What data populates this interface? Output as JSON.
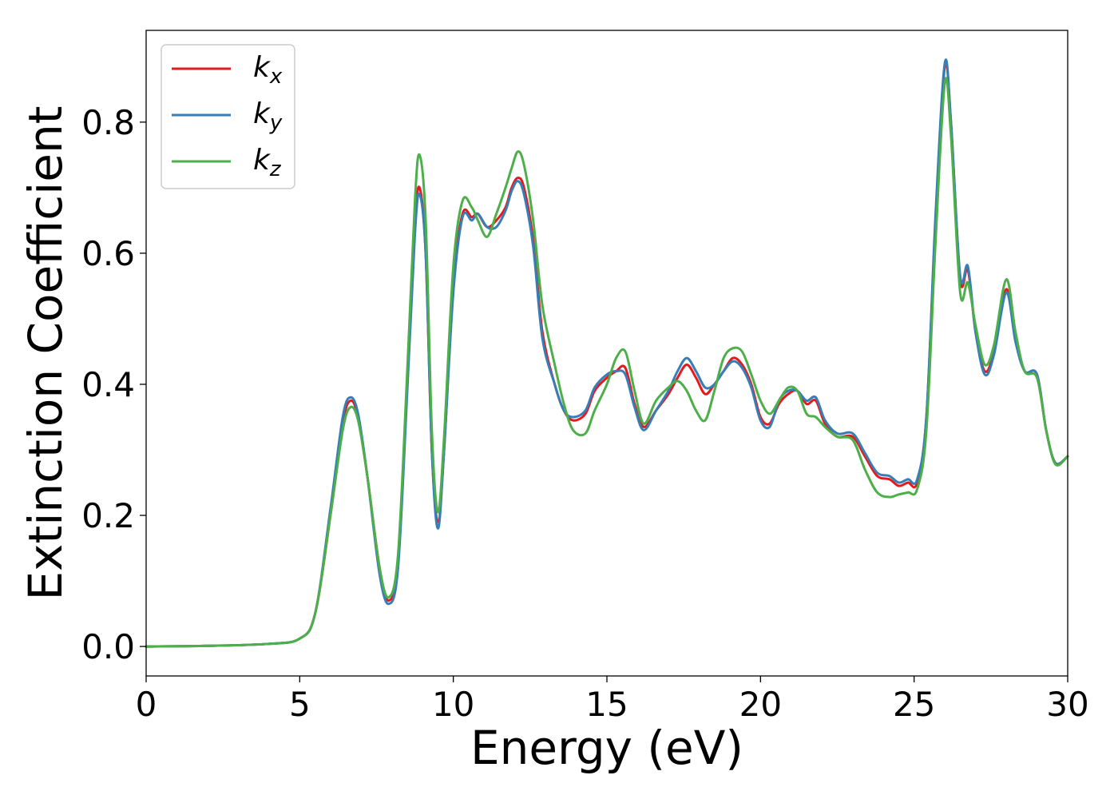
{
  "chart_data": {
    "type": "line",
    "title": "",
    "xlabel": "Energy (eV)",
    "ylabel": "Extinction Coefficient",
    "xlim": [
      0,
      30
    ],
    "ylim": [
      -0.045,
      0.94
    ],
    "grid": false,
    "legend_position": "top-left",
    "x_ticks": [
      0,
      5,
      10,
      15,
      20,
      25,
      30
    ],
    "x_tick_labels": [
      "0",
      "5",
      "10",
      "15",
      "20",
      "25",
      "30"
    ],
    "y_ticks": [
      0.0,
      0.2,
      0.4,
      0.6,
      0.8
    ],
    "y_tick_labels": [
      "0.0",
      "0.2",
      "0.4",
      "0.6",
      "0.8"
    ],
    "series": [
      {
        "name": "k_x",
        "label_base": "k",
        "label_sub": "x",
        "color": "#e41a1c",
        "points": [
          [
            0,
            0.0
          ],
          [
            2,
            0.001
          ],
          [
            4,
            0.004
          ],
          [
            5,
            0.012
          ],
          [
            5.5,
            0.05
          ],
          [
            6,
            0.2
          ],
          [
            6.4,
            0.34
          ],
          [
            6.65,
            0.375
          ],
          [
            6.9,
            0.35
          ],
          [
            7.2,
            0.26
          ],
          [
            7.6,
            0.12
          ],
          [
            7.9,
            0.07
          ],
          [
            8.2,
            0.13
          ],
          [
            8.5,
            0.4
          ],
          [
            8.75,
            0.64
          ],
          [
            8.9,
            0.7
          ],
          [
            9.1,
            0.6
          ],
          [
            9.3,
            0.3
          ],
          [
            9.5,
            0.19
          ],
          [
            9.7,
            0.3
          ],
          [
            10,
            0.55
          ],
          [
            10.3,
            0.66
          ],
          [
            10.6,
            0.655
          ],
          [
            10.8,
            0.66
          ],
          [
            11.1,
            0.64
          ],
          [
            11.4,
            0.65
          ],
          [
            11.7,
            0.67
          ],
          [
            11.9,
            0.7
          ],
          [
            12.1,
            0.715
          ],
          [
            12.3,
            0.7
          ],
          [
            12.6,
            0.62
          ],
          [
            12.9,
            0.48
          ],
          [
            13.3,
            0.4
          ],
          [
            13.6,
            0.36
          ],
          [
            13.9,
            0.345
          ],
          [
            14.3,
            0.355
          ],
          [
            14.6,
            0.39
          ],
          [
            15,
            0.41
          ],
          [
            15.3,
            0.42
          ],
          [
            15.6,
            0.425
          ],
          [
            15.9,
            0.37
          ],
          [
            16.2,
            0.335
          ],
          [
            16.6,
            0.36
          ],
          [
            17,
            0.385
          ],
          [
            17.3,
            0.41
          ],
          [
            17.6,
            0.43
          ],
          [
            17.9,
            0.41
          ],
          [
            18.2,
            0.385
          ],
          [
            18.5,
            0.4
          ],
          [
            18.8,
            0.42
          ],
          [
            19.1,
            0.44
          ],
          [
            19.4,
            0.43
          ],
          [
            19.7,
            0.4
          ],
          [
            20,
            0.35
          ],
          [
            20.3,
            0.34
          ],
          [
            20.6,
            0.37
          ],
          [
            20.9,
            0.385
          ],
          [
            21.2,
            0.39
          ],
          [
            21.5,
            0.37
          ],
          [
            21.8,
            0.375
          ],
          [
            22.1,
            0.34
          ],
          [
            22.5,
            0.32
          ],
          [
            23,
            0.32
          ],
          [
            23.4,
            0.29
          ],
          [
            23.8,
            0.26
          ],
          [
            24.2,
            0.255
          ],
          [
            24.5,
            0.245
          ],
          [
            24.8,
            0.25
          ],
          [
            25.1,
            0.25
          ],
          [
            25.4,
            0.35
          ],
          [
            25.7,
            0.65
          ],
          [
            26,
            0.885
          ],
          [
            26.2,
            0.8
          ],
          [
            26.5,
            0.56
          ],
          [
            26.75,
            0.575
          ],
          [
            27,
            0.48
          ],
          [
            27.3,
            0.42
          ],
          [
            27.6,
            0.45
          ],
          [
            28,
            0.545
          ],
          [
            28.3,
            0.47
          ],
          [
            28.6,
            0.42
          ],
          [
            29,
            0.415
          ],
          [
            29.3,
            0.33
          ],
          [
            29.6,
            0.28
          ],
          [
            30,
            0.29
          ]
        ]
      },
      {
        "name": "k_y",
        "label_base": "k",
        "label_sub": "y",
        "color": "#377eb8",
        "points": [
          [
            0,
            0.0
          ],
          [
            2,
            0.001
          ],
          [
            4,
            0.004
          ],
          [
            5,
            0.012
          ],
          [
            5.5,
            0.05
          ],
          [
            6,
            0.21
          ],
          [
            6.4,
            0.35
          ],
          [
            6.65,
            0.38
          ],
          [
            6.9,
            0.355
          ],
          [
            7.2,
            0.26
          ],
          [
            7.6,
            0.11
          ],
          [
            7.9,
            0.065
          ],
          [
            8.2,
            0.12
          ],
          [
            8.5,
            0.39
          ],
          [
            8.75,
            0.63
          ],
          [
            8.9,
            0.69
          ],
          [
            9.1,
            0.6
          ],
          [
            9.3,
            0.3
          ],
          [
            9.5,
            0.18
          ],
          [
            9.7,
            0.3
          ],
          [
            10,
            0.54
          ],
          [
            10.3,
            0.655
          ],
          [
            10.6,
            0.65
          ],
          [
            10.8,
            0.66
          ],
          [
            11.1,
            0.64
          ],
          [
            11.4,
            0.64
          ],
          [
            11.7,
            0.665
          ],
          [
            11.9,
            0.695
          ],
          [
            12.1,
            0.71
          ],
          [
            12.3,
            0.69
          ],
          [
            12.6,
            0.61
          ],
          [
            12.9,
            0.47
          ],
          [
            13.3,
            0.4
          ],
          [
            13.6,
            0.36
          ],
          [
            13.9,
            0.35
          ],
          [
            14.3,
            0.36
          ],
          [
            14.6,
            0.395
          ],
          [
            15,
            0.415
          ],
          [
            15.3,
            0.42
          ],
          [
            15.6,
            0.415
          ],
          [
            15.9,
            0.365
          ],
          [
            16.2,
            0.33
          ],
          [
            16.6,
            0.36
          ],
          [
            17,
            0.39
          ],
          [
            17.3,
            0.42
          ],
          [
            17.6,
            0.44
          ],
          [
            17.9,
            0.42
          ],
          [
            18.2,
            0.395
          ],
          [
            18.5,
            0.4
          ],
          [
            18.8,
            0.42
          ],
          [
            19.1,
            0.435
          ],
          [
            19.4,
            0.425
          ],
          [
            19.7,
            0.395
          ],
          [
            20,
            0.345
          ],
          [
            20.3,
            0.335
          ],
          [
            20.6,
            0.375
          ],
          [
            20.9,
            0.39
          ],
          [
            21.2,
            0.39
          ],
          [
            21.5,
            0.375
          ],
          [
            21.8,
            0.38
          ],
          [
            22.1,
            0.345
          ],
          [
            22.5,
            0.325
          ],
          [
            23,
            0.325
          ],
          [
            23.4,
            0.295
          ],
          [
            23.8,
            0.265
          ],
          [
            24.2,
            0.26
          ],
          [
            24.5,
            0.25
          ],
          [
            24.8,
            0.255
          ],
          [
            25.1,
            0.255
          ],
          [
            25.4,
            0.35
          ],
          [
            25.7,
            0.66
          ],
          [
            26,
            0.89
          ],
          [
            26.2,
            0.8
          ],
          [
            26.5,
            0.565
          ],
          [
            26.75,
            0.58
          ],
          [
            27,
            0.48
          ],
          [
            27.3,
            0.415
          ],
          [
            27.6,
            0.445
          ],
          [
            28,
            0.54
          ],
          [
            28.3,
            0.465
          ],
          [
            28.6,
            0.42
          ],
          [
            29,
            0.415
          ],
          [
            29.3,
            0.33
          ],
          [
            29.6,
            0.28
          ],
          [
            30,
            0.29
          ]
        ]
      },
      {
        "name": "k_z",
        "label_base": "k",
        "label_sub": "z",
        "color": "#4daf4a",
        "points": [
          [
            0,
            0.0
          ],
          [
            2,
            0.001
          ],
          [
            4,
            0.004
          ],
          [
            5,
            0.012
          ],
          [
            5.5,
            0.05
          ],
          [
            6,
            0.2
          ],
          [
            6.4,
            0.33
          ],
          [
            6.65,
            0.365
          ],
          [
            6.9,
            0.345
          ],
          [
            7.2,
            0.26
          ],
          [
            7.6,
            0.12
          ],
          [
            7.9,
            0.075
          ],
          [
            8.2,
            0.14
          ],
          [
            8.5,
            0.42
          ],
          [
            8.75,
            0.68
          ],
          [
            8.9,
            0.75
          ],
          [
            9.1,
            0.65
          ],
          [
            9.3,
            0.33
          ],
          [
            9.5,
            0.205
          ],
          [
            9.7,
            0.32
          ],
          [
            10,
            0.58
          ],
          [
            10.3,
            0.68
          ],
          [
            10.6,
            0.67
          ],
          [
            10.8,
            0.65
          ],
          [
            11.1,
            0.625
          ],
          [
            11.4,
            0.66
          ],
          [
            11.7,
            0.7
          ],
          [
            11.9,
            0.73
          ],
          [
            12.1,
            0.755
          ],
          [
            12.3,
            0.735
          ],
          [
            12.6,
            0.65
          ],
          [
            12.9,
            0.52
          ],
          [
            13.3,
            0.43
          ],
          [
            13.6,
            0.37
          ],
          [
            13.9,
            0.33
          ],
          [
            14.3,
            0.325
          ],
          [
            14.6,
            0.36
          ],
          [
            15,
            0.4
          ],
          [
            15.3,
            0.44
          ],
          [
            15.6,
            0.45
          ],
          [
            15.9,
            0.39
          ],
          [
            16.2,
            0.34
          ],
          [
            16.6,
            0.375
          ],
          [
            17,
            0.395
          ],
          [
            17.3,
            0.405
          ],
          [
            17.6,
            0.39
          ],
          [
            17.9,
            0.36
          ],
          [
            18.2,
            0.345
          ],
          [
            18.5,
            0.39
          ],
          [
            18.8,
            0.44
          ],
          [
            19.1,
            0.455
          ],
          [
            19.4,
            0.45
          ],
          [
            19.7,
            0.415
          ],
          [
            20,
            0.375
          ],
          [
            20.3,
            0.355
          ],
          [
            20.6,
            0.375
          ],
          [
            20.9,
            0.395
          ],
          [
            21.2,
            0.39
          ],
          [
            21.5,
            0.355
          ],
          [
            21.8,
            0.35
          ],
          [
            22.1,
            0.335
          ],
          [
            22.5,
            0.32
          ],
          [
            23,
            0.315
          ],
          [
            23.4,
            0.27
          ],
          [
            23.8,
            0.235
          ],
          [
            24.2,
            0.228
          ],
          [
            24.5,
            0.232
          ],
          [
            24.8,
            0.235
          ],
          [
            25.1,
            0.24
          ],
          [
            25.4,
            0.33
          ],
          [
            25.7,
            0.62
          ],
          [
            26,
            0.86
          ],
          [
            26.2,
            0.78
          ],
          [
            26.5,
            0.54
          ],
          [
            26.75,
            0.555
          ],
          [
            27,
            0.49
          ],
          [
            27.3,
            0.43
          ],
          [
            27.6,
            0.46
          ],
          [
            28,
            0.56
          ],
          [
            28.3,
            0.48
          ],
          [
            28.6,
            0.42
          ],
          [
            29,
            0.41
          ],
          [
            29.3,
            0.33
          ],
          [
            29.6,
            0.278
          ],
          [
            30,
            0.29
          ]
        ]
      }
    ]
  }
}
